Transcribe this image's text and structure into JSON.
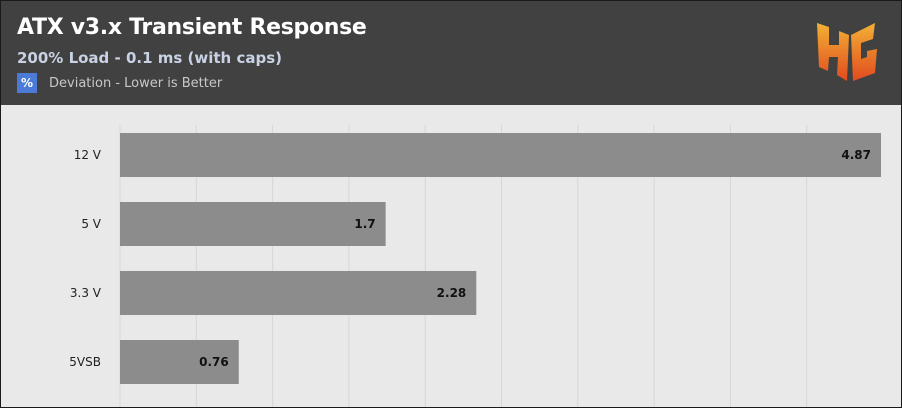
{
  "header": {
    "title": "ATX v3.x Transient Response",
    "subtitle": "200% Load - 0.1 ms (with caps)",
    "legend_symbol": "%",
    "legend_label": "Deviation - Lower is Better",
    "logo_text": "HG"
  },
  "colors": {
    "header_bg": "#414141",
    "plot_bg": "#e9e9e9",
    "bar": "#8c8c8c",
    "legend_swatch": "#4b7bd6",
    "logo_gradient": [
      "#f2b135",
      "#e24a1e"
    ]
  },
  "chart_data": {
    "type": "bar",
    "orientation": "horizontal",
    "categories": [
      "12 V",
      "5 V",
      "3.3 V",
      "5VSB"
    ],
    "values": [
      4.87,
      1.7,
      2.28,
      0.76
    ],
    "series": [
      {
        "name": "Deviation - Lower is Better",
        "values": [
          4.87,
          1.7,
          2.28,
          0.76
        ]
      }
    ],
    "xlim": [
      0,
      4.87
    ],
    "grid": true,
    "legend_placement": "top-left"
  }
}
